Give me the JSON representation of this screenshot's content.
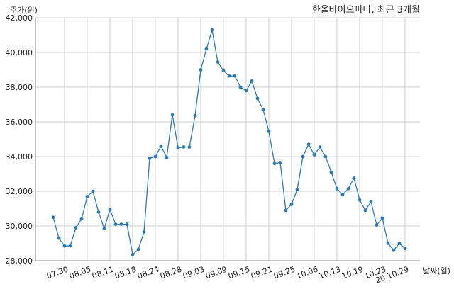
{
  "chart_data": {
    "type": "line",
    "title": "한올바이오파마, 최근 3개월",
    "ylabel": "주가(원)",
    "xlabel": "날짜(일)",
    "ylim": [
      28000,
      42000
    ],
    "yticks": [
      "28,000",
      "30,000",
      "32,000",
      "34,000",
      "36,000",
      "38,000",
      "40,000",
      "42,000"
    ],
    "xticks": [
      "07.30",
      "08.05",
      "08.11",
      "08.18",
      "08.24",
      "08.28",
      "09.03",
      "09.09",
      "09.15",
      "09.21",
      "09.25",
      "10.06",
      "10.13",
      "10.19",
      "10.23",
      "20.10.29"
    ],
    "xtick_index": [
      2,
      6,
      10,
      14,
      18,
      22,
      26,
      30,
      34,
      38,
      42,
      46,
      50,
      54,
      58,
      62
    ],
    "x_count": 63,
    "grid": true,
    "line_color": "#2b7bb9",
    "series": [
      {
        "values": [
          30500,
          29300,
          28850,
          28850,
          29900,
          30400,
          31700,
          32000,
          30800,
          29850,
          30950,
          30100,
          30100,
          30100,
          28350,
          28650,
          29650,
          33900,
          34000,
          34600,
          33950,
          36400,
          34500,
          34550,
          34550,
          36350,
          39000,
          40200,
          41300,
          39450,
          38950,
          38650,
          38650,
          38000,
          37800,
          38350,
          37350,
          36700,
          35450,
          33600,
          33650,
          30900,
          31250,
          32100,
          34000,
          34700,
          34100,
          34550,
          34000,
          33100,
          32150,
          31800,
          32150,
          32750,
          31500,
          30900,
          31400,
          30050,
          30450,
          29000,
          28600,
          29000,
          28700
        ]
      }
    ]
  }
}
